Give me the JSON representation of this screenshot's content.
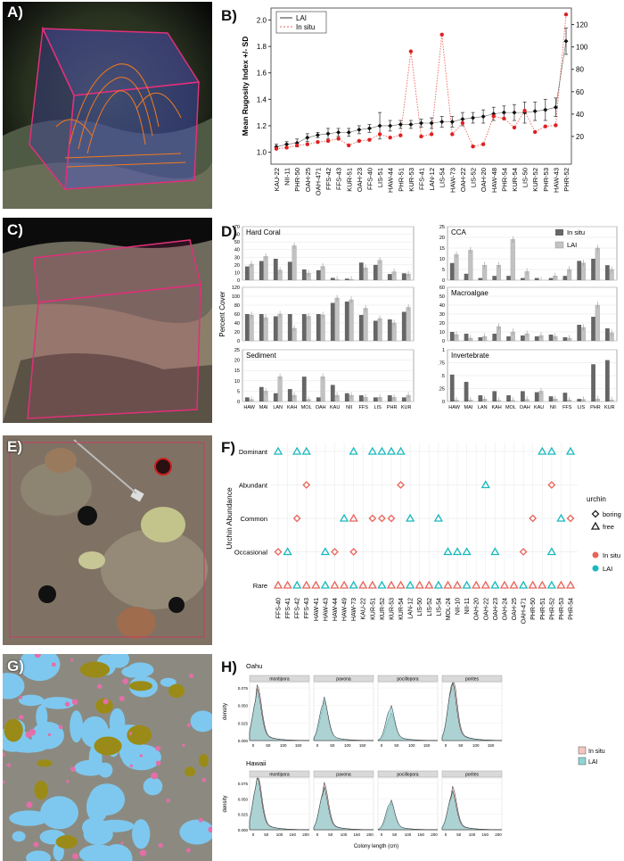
{
  "panel_labels": {
    "a": "A)",
    "b": "B)",
    "c": "C)",
    "d": "D)",
    "e": "E)",
    "f": "F)",
    "g": "G)",
    "h": "H)"
  },
  "colors": {
    "insitu_red": "#e8655a",
    "lai_teal": "#19b9bf",
    "dark_bar": "#666666",
    "light_bar": "#c2c2c2",
    "ortho_blue": "#7ec8ef",
    "ortho_pink": "#e36ea8",
    "ortho_olive": "#9a8b18"
  },
  "chart_data": [
    {
      "id": "B",
      "type": "line",
      "ylabel": "Mean Rugosity Index +/- SD",
      "legend": [
        "LAI",
        "In situ"
      ],
      "legend_position": "top-left",
      "categories": [
        "KAU-22",
        "NII-11",
        "PHR-50",
        "OAH-25",
        "OAH-471",
        "FFS-42",
        "FFS-43",
        "KUR-51",
        "OAH-23",
        "FFS-40",
        "LIS-51",
        "HAW-44",
        "PHR-51",
        "KUR-53",
        "FFS-41",
        "LAN-12",
        "LIS-54",
        "HAW-73",
        "OAH-22",
        "LIS-52",
        "OAH-20",
        "HAW-48",
        "PHR-54",
        "KUR-54",
        "LIS-50",
        "KUR-52",
        "PHR-53",
        "HAW-43",
        "PHR-52"
      ],
      "ylim": [
        0.95,
        2.05
      ],
      "yticks": [
        "1.0",
        "1.2",
        "1.4",
        "1.6",
        "1.8",
        "2.0"
      ],
      "y2lim": [
        0,
        130
      ],
      "y2ticks": [
        "20",
        "40",
        "60",
        "80",
        "100",
        "120"
      ],
      "series": [
        {
          "name": "LAI",
          "values": [
            1.04,
            1.06,
            1.07,
            1.11,
            1.13,
            1.14,
            1.15,
            1.15,
            1.17,
            1.18,
            1.2,
            1.2,
            1.21,
            1.21,
            1.22,
            1.22,
            1.23,
            1.23,
            1.25,
            1.26,
            1.27,
            1.29,
            1.3,
            1.3,
            1.3,
            1.31,
            1.32,
            1.34,
            1.84
          ],
          "sd": [
            0.02,
            0.02,
            0.03,
            0.03,
            0.02,
            0.04,
            0.03,
            0.03,
            0.03,
            0.03,
            0.1,
            0.04,
            0.03,
            0.03,
            0.03,
            0.04,
            0.04,
            0.04,
            0.05,
            0.04,
            0.05,
            0.05,
            0.05,
            0.06,
            0.08,
            0.07,
            0.08,
            0.07,
            0.1
          ]
        },
        {
          "name": "In situ",
          "values": [
            9,
            10,
            12,
            13,
            15,
            16,
            18,
            12,
            16,
            17,
            22,
            19,
            21,
            96,
            20,
            22,
            111,
            22,
            32,
            11,
            13,
            38,
            36,
            28,
            43,
            24,
            29,
            30,
            129
          ]
        }
      ]
    },
    {
      "id": "D",
      "type": "bar",
      "ylabel": "Percent Cover",
      "legend": [
        "In situ",
        "LAI"
      ],
      "legend_position": "top-right",
      "categories": [
        "HAW",
        "MAI",
        "LAN",
        "KAH",
        "MOL",
        "OAH",
        "KAU",
        "NII",
        "FFS",
        "LIS",
        "PHR",
        "KUR"
      ],
      "subplots": [
        {
          "title": "Hard Coral",
          "ylim": [
            0,
            70
          ],
          "yticks": [
            "0",
            "10",
            "20",
            "30",
            "40",
            "50",
            "60",
            "70"
          ],
          "insitu": [
            18,
            25,
            28,
            24,
            14,
            13,
            3,
            2,
            23,
            20,
            8,
            9
          ],
          "lai": [
            21,
            31,
            13,
            45,
            9,
            18,
            1,
            1,
            16,
            26,
            11,
            8
          ]
        },
        {
          "title": "CCA",
          "ylim": [
            0,
            25
          ],
          "yticks": [
            "0",
            "5",
            "10",
            "15",
            "20",
            "25"
          ],
          "insitu": [
            8,
            3,
            1,
            2,
            2,
            1,
            1,
            1,
            2,
            9,
            10,
            7
          ],
          "lai": [
            12,
            14,
            7,
            7,
            19,
            4,
            0,
            2,
            5,
            8,
            15,
            5
          ]
        },
        {
          "title": "",
          "ylim": [
            0,
            120
          ],
          "yticks": [
            "0",
            "20",
            "40",
            "60",
            "80",
            "100",
            "120"
          ],
          "insitu": [
            60,
            60,
            55,
            60,
            60,
            60,
            85,
            88,
            58,
            45,
            48,
            65
          ],
          "lai": [
            58,
            52,
            60,
            28,
            55,
            58,
            96,
            92,
            73,
            50,
            40,
            75
          ]
        },
        {
          "title": "Macroalgae",
          "ylim": [
            0,
            60
          ],
          "yticks": [
            "0",
            "10",
            "20",
            "30",
            "40",
            "50",
            "60"
          ],
          "insitu": [
            10,
            8,
            4,
            8,
            5,
            6,
            5,
            7,
            4,
            18,
            27,
            14
          ],
          "lai": [
            7,
            3,
            5,
            16,
            10,
            8,
            6,
            5,
            3,
            15,
            40,
            9
          ]
        },
        {
          "title": "Sediment",
          "ylim": [
            0,
            25
          ],
          "yticks": [
            "0",
            "5",
            "10",
            "15",
            "20",
            "25"
          ],
          "insitu": [
            2,
            7,
            4,
            6,
            12,
            2,
            8,
            4,
            3,
            2,
            3,
            2
          ],
          "lai": [
            1,
            5,
            12,
            3,
            1,
            12,
            3,
            3,
            2,
            2,
            2,
            3
          ]
        },
        {
          "title": "Invertebrate",
          "ylim": [
            0,
            1
          ],
          "yticks": [
            "0",
            ".25",
            ".5",
            ".75",
            "1"
          ],
          "insitu": [
            0.52,
            0.38,
            0.12,
            0.2,
            0.12,
            0.2,
            0.18,
            0.1,
            0.17,
            0.05,
            0.72,
            0.8
          ],
          "lai": [
            0.03,
            0.03,
            0.05,
            0.02,
            0.02,
            0.04,
            0.2,
            0.05,
            0.03,
            0.04,
            0.05,
            0.03
          ]
        }
      ]
    },
    {
      "id": "F",
      "type": "scatter",
      "ylabel": "Urchin Abundance",
      "levels": [
        "Rare",
        "Occasional",
        "Common",
        "Abundant",
        "Dominant"
      ],
      "categories": [
        "FFS-40",
        "FFS-41",
        "FFS-42",
        "FFS-43",
        "HAW-41",
        "HAW-43",
        "HAW-44",
        "HAW-49",
        "HAW-73",
        "KAU-22",
        "KUR-51",
        "KUR-52",
        "KUR-53",
        "KUR-54",
        "LAN-12",
        "LIS-50",
        "LIS-52",
        "LIS-54",
        "MOL-24",
        "NII-10",
        "NII-11",
        "OAH-20",
        "OAH-22",
        "OAH-23",
        "OAH-24",
        "OAH-25",
        "OAH-471",
        "PHR-50",
        "PHR-51",
        "PHR-52",
        "PHR-53",
        "PHR-54"
      ],
      "legend_urchin_title": "urchin",
      "legend_urchin": [
        "boring",
        "free"
      ],
      "legend_source": [
        "In situ",
        "LAI"
      ],
      "points": [
        {
          "x": 0,
          "level": "Dominant",
          "src": "LAI",
          "shape": "free"
        },
        {
          "x": 2,
          "level": "Dominant",
          "src": "LAI",
          "shape": "free"
        },
        {
          "x": 3,
          "level": "Dominant",
          "src": "LAI",
          "shape": "free"
        },
        {
          "x": 8,
          "level": "Dominant",
          "src": "LAI",
          "shape": "free"
        },
        {
          "x": 10,
          "level": "Dominant",
          "src": "LAI",
          "shape": "free"
        },
        {
          "x": 11,
          "level": "Dominant",
          "src": "LAI",
          "shape": "free"
        },
        {
          "x": 12,
          "level": "Dominant",
          "src": "LAI",
          "shape": "free"
        },
        {
          "x": 13,
          "level": "Dominant",
          "src": "LAI",
          "shape": "free"
        },
        {
          "x": 28,
          "level": "Dominant",
          "src": "LAI",
          "shape": "free"
        },
        {
          "x": 29,
          "level": "Dominant",
          "src": "LAI",
          "shape": "free"
        },
        {
          "x": 31,
          "level": "Dominant",
          "src": "LAI",
          "shape": "free"
        },
        {
          "x": 3,
          "level": "Abundant",
          "src": "In situ",
          "shape": "boring"
        },
        {
          "x": 13,
          "level": "Abundant",
          "src": "In situ",
          "shape": "boring"
        },
        {
          "x": 22,
          "level": "Abundant",
          "src": "LAI",
          "shape": "free"
        },
        {
          "x": 29,
          "level": "Abundant",
          "src": "In situ",
          "shape": "boring"
        },
        {
          "x": 2,
          "level": "Common",
          "src": "In situ",
          "shape": "boring"
        },
        {
          "x": 7,
          "level": "Common",
          "src": "LAI",
          "shape": "free"
        },
        {
          "x": 8,
          "level": "Common",
          "src": "In situ",
          "shape": "free"
        },
        {
          "x": 10,
          "level": "Common",
          "src": "In situ",
          "shape": "boring"
        },
        {
          "x": 11,
          "level": "Common",
          "src": "In situ",
          "shape": "boring"
        },
        {
          "x": 12,
          "level": "Common",
          "src": "In situ",
          "shape": "boring"
        },
        {
          "x": 14,
          "level": "Common",
          "src": "LAI",
          "shape": "free"
        },
        {
          "x": 17,
          "level": "Common",
          "src": "LAI",
          "shape": "free"
        },
        {
          "x": 27,
          "level": "Common",
          "src": "In situ",
          "shape": "boring"
        },
        {
          "x": 30,
          "level": "Common",
          "src": "LAI",
          "shape": "free"
        },
        {
          "x": 31,
          "level": "Common",
          "src": "In situ",
          "shape": "boring"
        },
        {
          "x": 0,
          "level": "Occasional",
          "src": "In situ",
          "shape": "boring"
        },
        {
          "x": 1,
          "level": "Occasional",
          "src": "LAI",
          "shape": "free"
        },
        {
          "x": 5,
          "level": "Occasional",
          "src": "LAI",
          "shape": "free"
        },
        {
          "x": 6,
          "level": "Occasional",
          "src": "In situ",
          "shape": "boring"
        },
        {
          "x": 8,
          "level": "Occasional",
          "src": "In situ",
          "shape": "boring"
        },
        {
          "x": 18,
          "level": "Occasional",
          "src": "LAI",
          "shape": "free"
        },
        {
          "x": 19,
          "level": "Occasional",
          "src": "LAI",
          "shape": "free"
        },
        {
          "x": 20,
          "level": "Occasional",
          "src": "LAI",
          "shape": "free"
        },
        {
          "x": 23,
          "level": "Occasional",
          "src": "LAI",
          "shape": "free"
        },
        {
          "x": 26,
          "level": "Occasional",
          "src": "In situ",
          "shape": "boring"
        },
        {
          "x": 29,
          "level": "Occasional",
          "src": "LAI",
          "shape": "free"
        }
      ]
    },
    {
      "id": "H",
      "type": "area",
      "ylabel": "density",
      "xlabel": "Colony length (cm)",
      "legend": [
        "In situ",
        "LAI"
      ],
      "legend_position": "right",
      "rows": [
        "Oahu",
        "Hawaii"
      ],
      "taxa": [
        "montipora",
        "pavona",
        "pocillopora",
        "porites"
      ],
      "xticks_top": [
        "0",
        "50",
        "100",
        "150"
      ],
      "xticks_bottom": [
        "0",
        "50",
        "100",
        "150",
        "200"
      ],
      "yticks": [
        "0.000",
        "0.025",
        "0.050",
        "0.075"
      ],
      "ylim": [
        0,
        0.08
      ],
      "peaks": {
        "Oahu": {
          "montipora": [
            0.062,
            0.058
          ],
          "pavona": [
            0.045,
            0.05
          ],
          "pocillopora": [
            0.032,
            0.042
          ],
          "porites": [
            0.078,
            0.07
          ]
        },
        "Hawaii": {
          "montipora": [
            0.072,
            0.068
          ],
          "pavona": [
            0.06,
            0.055
          ],
          "pocillopora": [
            0.035,
            0.04
          ],
          "porites": [
            0.055,
            0.05
          ]
        }
      }
    }
  ]
}
